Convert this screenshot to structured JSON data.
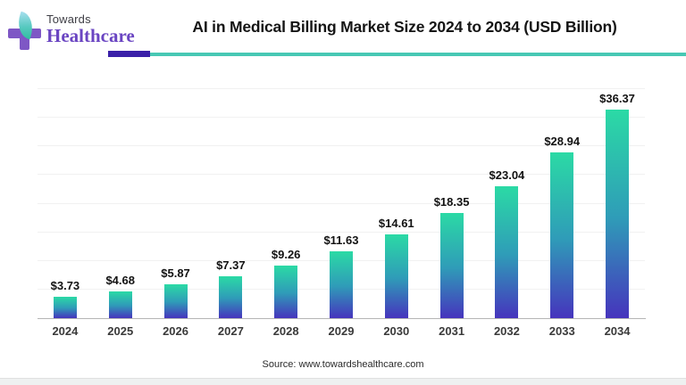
{
  "logo": {
    "line1": "Towards",
    "line2": "Healthcare"
  },
  "header": {
    "title": "AI in Medical Billing Market Size 2024 to 2034 (USD Billion)"
  },
  "colors": {
    "divider_purple": "#3a20a8",
    "divider_teal": "#47c8b4",
    "logo_cross_purple": "#7e57c5",
    "logo_text_purple": "#6a45c2",
    "title_color": "#151515"
  },
  "chart_data": {
    "type": "bar",
    "title": "AI in Medical Billing Market Size 2024 to 2034 (USD Billion)",
    "categories": [
      "2024",
      "2025",
      "2026",
      "2027",
      "2028",
      "2029",
      "2030",
      "2031",
      "2032",
      "2033",
      "2034"
    ],
    "values": [
      3.73,
      4.68,
      5.87,
      7.37,
      9.26,
      11.63,
      14.61,
      18.35,
      23.04,
      28.94,
      36.37
    ],
    "value_labels": [
      "$3.73",
      "$4.68",
      "$5.87",
      "$7.37",
      "$9.26",
      "$11.63",
      "$14.61",
      "$18.35",
      "$23.04",
      "$28.94",
      "$36.37"
    ],
    "xlabel": "",
    "ylabel": "",
    "ylim": [
      0,
      40
    ],
    "gridline_step": 5,
    "grid": true,
    "legend": false,
    "y_tick_labels_visible": false,
    "bar_gradient_top": "#2bdaa5",
    "bar_gradient_mid": "#2f9cb8",
    "bar_gradient_bottom": "#4634bd"
  },
  "footer": {
    "source": "Source: www.towardshealthcare.com"
  }
}
